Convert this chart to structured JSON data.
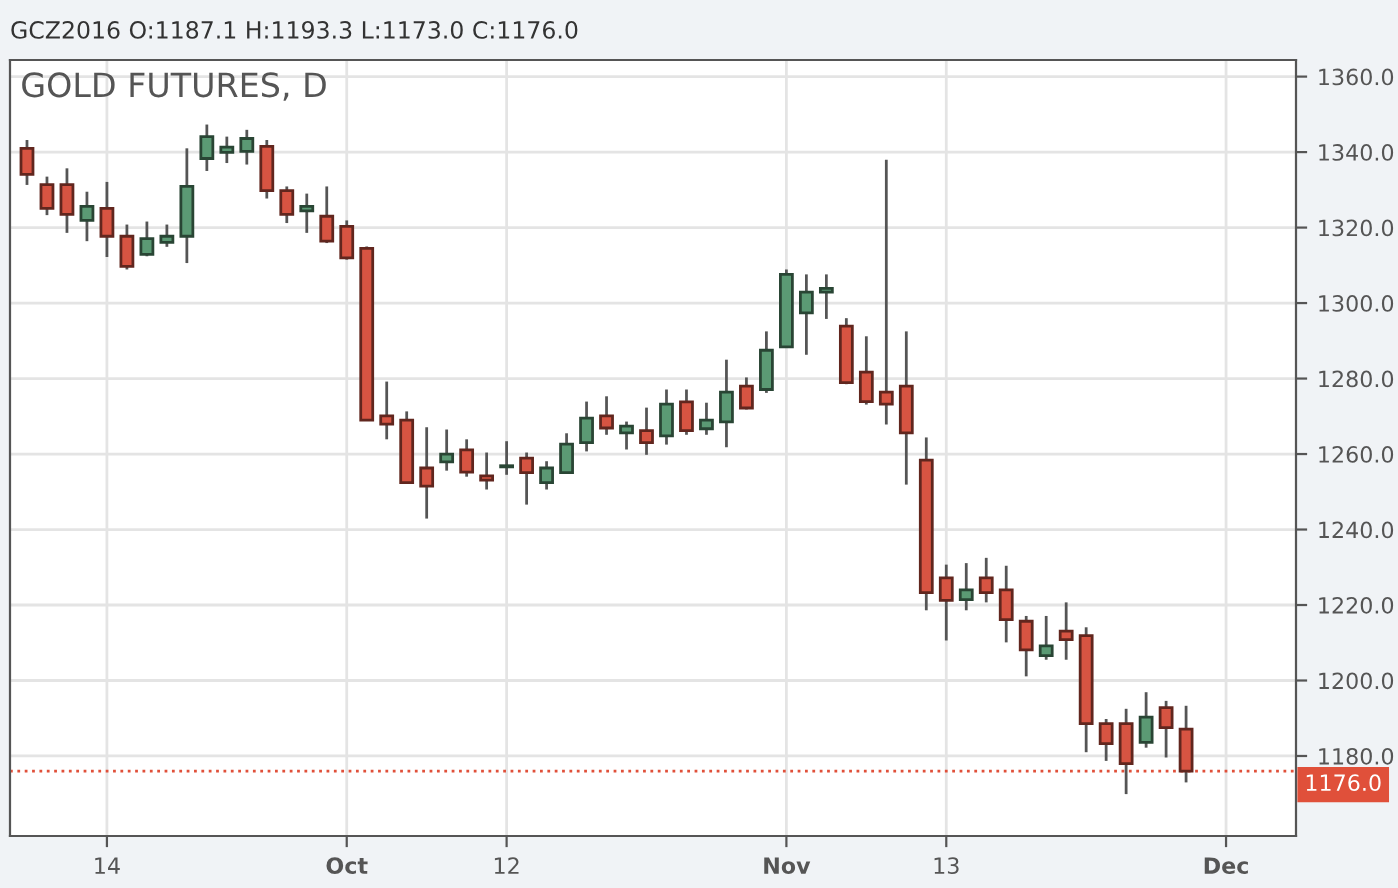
{
  "chart_data": {
    "type": "candlestick",
    "title": "GOLD FUTURES, D",
    "subtitle": "GCZ2016 O:1187.1 H:1193.3 L:1173.0 C:1176.0",
    "categories": [
      null,
      null,
      null,
      null,
      "14",
      null,
      null,
      null,
      null,
      null,
      null,
      null,
      null,
      null,
      null,
      null,
      "Oct",
      null,
      null,
      null,
      null,
      null,
      null,
      null,
      "12",
      null,
      null,
      null,
      null,
      null,
      null,
      null,
      null,
      null,
      null,
      null,
      null,
      null,
      "Nov",
      null,
      null,
      null,
      null,
      null,
      null,
      null,
      "13",
      null,
      null,
      null,
      null,
      null,
      null,
      null,
      null,
      null,
      null,
      null,
      null,
      null,
      "Dec"
    ],
    "ohlc": [
      [
        1341.0,
        1343.2,
        1331.3,
        1334.1
      ],
      [
        1331.4,
        1333.5,
        1323.3,
        1325.1
      ],
      [
        1331.4,
        1335.7,
        1318.6,
        1323.5
      ],
      [
        1321.9,
        1329.5,
        1316.4,
        1325.6
      ],
      [
        1325.1,
        1332.1,
        1312.2,
        1317.7
      ],
      [
        1317.7,
        1320.8,
        1308.9,
        1309.7
      ],
      [
        1312.9,
        1321.6,
        1312.4,
        1317.1
      ],
      [
        1316.1,
        1320.8,
        1314.9,
        1317.7
      ],
      [
        1317.7,
        1341.0,
        1310.6,
        1330.9
      ],
      [
        1338.3,
        1347.3,
        1335.0,
        1344.1
      ],
      [
        1339.9,
        1344.1,
        1337.1,
        1341.3
      ],
      [
        1340.2,
        1345.9,
        1336.7,
        1343.6
      ],
      [
        1341.5,
        1343.2,
        1327.7,
        1329.8
      ],
      [
        1329.8,
        1330.9,
        1321.2,
        1323.5
      ],
      [
        1324.4,
        1329.0,
        1318.6,
        1325.6
      ],
      [
        1323.0,
        1330.9,
        1315.9,
        1316.4
      ],
      [
        1320.3,
        1321.9,
        1311.5,
        1312.0
      ],
      [
        1314.5,
        1315.0,
        1269.0,
        1269.0
      ],
      [
        1270.1,
        1279.2,
        1263.9,
        1267.9
      ],
      [
        1269.0,
        1271.3,
        1252.1,
        1252.4
      ],
      [
        1256.3,
        1267.1,
        1242.9,
        1251.5
      ],
      [
        1257.9,
        1266.5,
        1255.6,
        1260.0
      ],
      [
        1261.1,
        1263.9,
        1254.0,
        1255.2
      ],
      [
        1254.2,
        1260.4,
        1250.6,
        1253.1
      ],
      [
        1256.6,
        1263.4,
        1254.5,
        1256.9
      ],
      [
        1258.9,
        1260.4,
        1246.6,
        1255.1
      ],
      [
        1252.4,
        1258.1,
        1250.6,
        1256.3
      ],
      [
        1255.1,
        1265.5,
        1255.1,
        1262.6
      ],
      [
        1263.0,
        1273.9,
        1260.7,
        1269.5
      ],
      [
        1270.1,
        1275.3,
        1265.1,
        1266.9
      ],
      [
        1265.6,
        1268.6,
        1261.2,
        1267.4
      ],
      [
        1266.2,
        1272.3,
        1259.8,
        1263.0
      ],
      [
        1264.8,
        1277.1,
        1262.5,
        1273.2
      ],
      [
        1273.8,
        1277.1,
        1265.1,
        1266.2
      ],
      [
        1266.7,
        1273.6,
        1265.1,
        1269.0
      ],
      [
        1268.5,
        1285.0,
        1261.8,
        1276.4
      ],
      [
        1278.0,
        1280.3,
        1271.8,
        1272.2
      ],
      [
        1277.1,
        1292.5,
        1276.2,
        1287.5
      ],
      [
        1288.4,
        1308.9,
        1288.4,
        1307.6
      ],
      [
        1297.4,
        1307.6,
        1286.3,
        1302.9
      ],
      [
        1302.9,
        1307.6,
        1295.8,
        1303.9
      ],
      [
        1293.9,
        1296.0,
        1278.5,
        1278.9
      ],
      [
        1281.7,
        1291.2,
        1273.1,
        1273.9
      ],
      [
        1276.4,
        1338.0,
        1267.8,
        1273.2
      ],
      [
        1278.0,
        1292.5,
        1251.9,
        1265.6
      ],
      [
        1258.4,
        1264.4,
        1218.6,
        1223.3
      ],
      [
        1227.2,
        1230.7,
        1210.6,
        1221.2
      ],
      [
        1221.4,
        1231.1,
        1218.6,
        1224.0
      ],
      [
        1227.2,
        1232.5,
        1220.7,
        1223.3
      ],
      [
        1224.0,
        1230.4,
        1210.1,
        1216.1
      ],
      [
        1215.7,
        1217.1,
        1201.1,
        1208.1
      ],
      [
        1206.6,
        1217.1,
        1205.5,
        1209.2
      ],
      [
        1213.1,
        1220.7,
        1205.5,
        1210.8
      ],
      [
        1211.9,
        1214.1,
        1181.0,
        1188.6
      ],
      [
        1188.6,
        1189.8,
        1178.7,
        1183.3
      ],
      [
        1188.6,
        1192.5,
        1169.9,
        1178.0
      ],
      [
        1183.6,
        1196.9,
        1182.2,
        1190.3
      ],
      [
        1192.8,
        1194.6,
        1179.6,
        1187.5
      ],
      [
        1187.1,
        1193.3,
        1173.0,
        1176.0
      ],
      null,
      null
    ],
    "colors": [
      "#d75442",
      "#d75442",
      "#d75442",
      "#5b9a74",
      "#d75442",
      "#d75442",
      "#5b9a74",
      "#5b9a74",
      "#5b9a74",
      "#5b9a74",
      "#5b9a74",
      "#5b9a74",
      "#d75442",
      "#d75442",
      "#5b9a74",
      "#d75442",
      "#d75442",
      "#d75442",
      "#d75442",
      "#d75442",
      "#d75442",
      "#5b9a74",
      "#d75442",
      "#d75442",
      "#5b9a74",
      "#d75442",
      "#5b9a74",
      "#5b9a74",
      "#5b9a74",
      "#d75442",
      "#5b9a74",
      "#d75442",
      "#5b9a74",
      "#d75442",
      "#5b9a74",
      "#5b9a74",
      "#d75442",
      "#5b9a74",
      "#5b9a74",
      "#5b9a74",
      "#5b9a74",
      "#d75442",
      "#d75442",
      "#d75442",
      "#d75442",
      "#d75442",
      "#d75442",
      "#5b9a74",
      "#d75442",
      "#d75442",
      "#d75442",
      "#5b9a74",
      "#d75442",
      "#d75442",
      "#d75442",
      "#d75442",
      "#5b9a74",
      "#d75442",
      "#d75442",
      null,
      null
    ],
    "ylim": [
      1158.8,
      1364.4
    ],
    "yticks": [
      {
        "value": 1180,
        "label": "1180.0"
      },
      {
        "value": 1200,
        "label": "1200.0"
      },
      {
        "value": 1220,
        "label": "1220.0"
      },
      {
        "value": 1240,
        "label": "1240.0"
      },
      {
        "value": 1260,
        "label": "1260.0"
      },
      {
        "value": 1280,
        "label": "1280.0"
      },
      {
        "value": 1300,
        "label": "1300.0"
      },
      {
        "value": 1320,
        "label": "1320.0"
      },
      {
        "value": 1340,
        "label": "1340.0"
      },
      {
        "value": 1360,
        "label": "1360.0"
      }
    ],
    "ref_lines": [
      {
        "axis": "y",
        "value": 1176.0,
        "label": "1176.0",
        "color": "#e0503a",
        "line_style": "dotted"
      }
    ],
    "grid": true
  }
}
